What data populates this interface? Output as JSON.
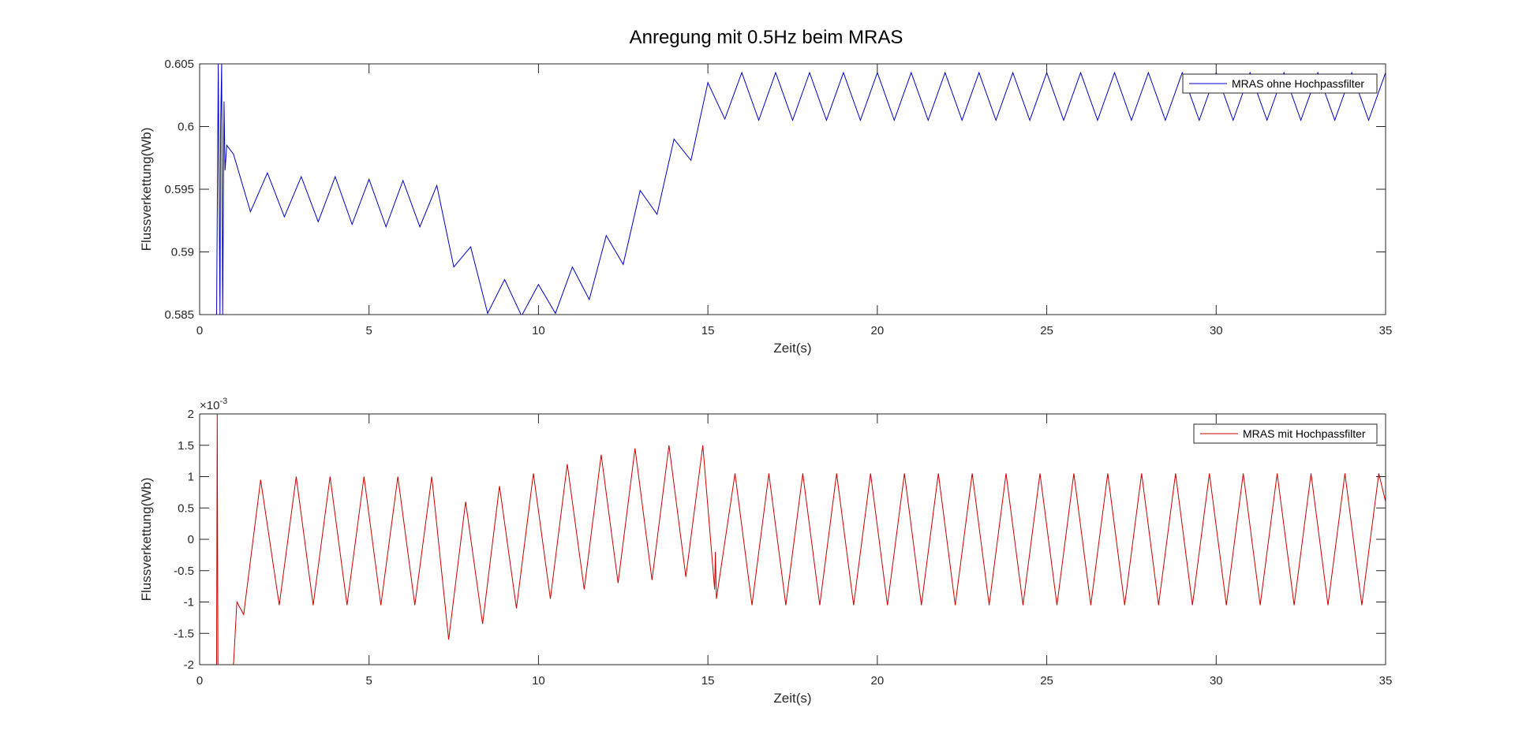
{
  "figure": {
    "title": "Anregung mit 0.5Hz beim MRAS"
  },
  "chart_data": [
    {
      "type": "line",
      "title": "Anregung mit 0.5Hz beim MRAS",
      "xlabel": "Zeit(s)",
      "ylabel": "Flussverkettung(Wb)",
      "xlim": [
        0,
        35
      ],
      "ylim": [
        0.585,
        0.605
      ],
      "xticks": [
        0,
        5,
        10,
        15,
        20,
        25,
        30,
        35
      ],
      "yticks": [
        0.585,
        0.59,
        0.595,
        0.6,
        0.605
      ],
      "ytick_labels": [
        "0.585",
        "0.59",
        "0.595",
        "0.6",
        "0.605"
      ],
      "legend": "top-right",
      "grid": false,
      "exponent_label": "",
      "series": [
        {
          "name": "MRAS ohne Hochpassfilter",
          "color": "#0000c8",
          "points": [
            [
              0.5,
              0.585
            ],
            [
              0.55,
              0.605
            ],
            [
              0.6,
              0.585
            ],
            [
              0.62,
              0.6
            ],
            [
              0.65,
              0.605
            ],
            [
              0.68,
              0.585
            ],
            [
              0.72,
              0.602
            ],
            [
              0.75,
              0.5965
            ],
            [
              0.8,
              0.5985
            ],
            [
              1.0,
              0.5978
            ],
            [
              1.5,
              0.5932
            ],
            [
              2.0,
              0.5963
            ],
            [
              2.5,
              0.5928
            ],
            [
              3.0,
              0.596
            ],
            [
              3.5,
              0.5924
            ],
            [
              4.0,
              0.596
            ],
            [
              4.5,
              0.5922
            ],
            [
              5.0,
              0.5958
            ],
            [
              5.5,
              0.592
            ],
            [
              6.0,
              0.5957
            ],
            [
              6.5,
              0.592
            ],
            [
              7.0,
              0.5953
            ],
            [
              7.5,
              0.5888
            ],
            [
              8.0,
              0.5904
            ],
            [
              8.5,
              0.5851
            ],
            [
              9.0,
              0.5878
            ],
            [
              9.5,
              0.5849
            ],
            [
              10.0,
              0.5874
            ],
            [
              10.5,
              0.5851
            ],
            [
              11.0,
              0.5888
            ],
            [
              11.5,
              0.5862
            ],
            [
              12.0,
              0.5913
            ],
            [
              12.5,
              0.589
            ],
            [
              13.0,
              0.5949
            ],
            [
              13.5,
              0.593
            ],
            [
              14.0,
              0.599
            ],
            [
              14.5,
              0.5973
            ],
            [
              15.0,
              0.6035
            ],
            [
              15.5,
              0.6006
            ],
            [
              16.0,
              0.6043
            ],
            [
              16.5,
              0.6005
            ],
            [
              17.0,
              0.6043
            ],
            [
              17.5,
              0.6005
            ],
            [
              18.0,
              0.6043
            ],
            [
              18.5,
              0.6005
            ],
            [
              19.0,
              0.6043
            ],
            [
              19.5,
              0.6005
            ],
            [
              20.0,
              0.6043
            ],
            [
              20.5,
              0.6005
            ],
            [
              21.0,
              0.6043
            ],
            [
              21.5,
              0.6005
            ],
            [
              22.0,
              0.6043
            ],
            [
              22.5,
              0.6005
            ],
            [
              23.0,
              0.6043
            ],
            [
              23.5,
              0.6005
            ],
            [
              24.0,
              0.6043
            ],
            [
              24.5,
              0.6005
            ],
            [
              25.0,
              0.6043
            ],
            [
              25.5,
              0.6005
            ],
            [
              26.0,
              0.6043
            ],
            [
              26.5,
              0.6005
            ],
            [
              27.0,
              0.6043
            ],
            [
              27.5,
              0.6005
            ],
            [
              28.0,
              0.6043
            ],
            [
              28.5,
              0.6005
            ],
            [
              29.0,
              0.6043
            ],
            [
              29.5,
              0.6005
            ],
            [
              30.0,
              0.6043
            ],
            [
              30.5,
              0.6005
            ],
            [
              31.0,
              0.6043
            ],
            [
              31.5,
              0.6005
            ],
            [
              32.0,
              0.6043
            ],
            [
              32.5,
              0.6005
            ],
            [
              33.0,
              0.6043
            ],
            [
              33.5,
              0.6005
            ],
            [
              34.0,
              0.6043
            ],
            [
              34.5,
              0.6005
            ],
            [
              35.0,
              0.6043
            ]
          ]
        }
      ]
    },
    {
      "type": "line",
      "title": "",
      "xlabel": "Zeit(s)",
      "ylabel": "Flussverkettung(Wb)",
      "xlim": [
        0,
        35
      ],
      "ylim": [
        -0.002,
        0.002
      ],
      "xticks": [
        0,
        5,
        10,
        15,
        20,
        25,
        30,
        35
      ],
      "yticks": [
        -0.002,
        -0.0015,
        -0.001,
        -0.0005,
        0,
        0.0005,
        0.001,
        0.0015,
        0.002
      ],
      "ytick_labels": [
        "-2",
        "-1.5",
        "-1",
        "-0.5",
        "0",
        "0.5",
        "1",
        "1.5",
        "2"
      ],
      "legend": "top-right",
      "grid": false,
      "exponent_label": "×10",
      "exponent_power": "-3",
      "series": [
        {
          "name": "MRAS mit Hochpassfilter",
          "color": "#c80000",
          "points": [
            [
              0.5,
              -0.002
            ],
            [
              0.52,
              0.002
            ],
            [
              0.54,
              -0.002
            ],
            [
              1.0,
              -0.002
            ],
            [
              1.1,
              -0.001
            ],
            [
              1.3,
              -0.0012
            ],
            [
              1.8,
              0.00095
            ],
            [
              2.35,
              -0.00105
            ],
            [
              2.85,
              0.001
            ],
            [
              3.35,
              -0.00105
            ],
            [
              3.85,
              0.001
            ],
            [
              4.35,
              -0.00105
            ],
            [
              4.85,
              0.001
            ],
            [
              5.35,
              -0.00105
            ],
            [
              5.85,
              0.001
            ],
            [
              6.35,
              -0.00105
            ],
            [
              6.85,
              0.001
            ],
            [
              7.35,
              -0.0016
            ],
            [
              7.85,
              0.0006
            ],
            [
              8.35,
              -0.00135
            ],
            [
              8.85,
              0.00085
            ],
            [
              9.35,
              -0.0011
            ],
            [
              9.85,
              0.00105
            ],
            [
              10.35,
              -0.00095
            ],
            [
              10.85,
              0.0012
            ],
            [
              11.35,
              -0.0008
            ],
            [
              11.85,
              0.00135
            ],
            [
              12.35,
              -0.0007
            ],
            [
              12.85,
              0.00145
            ],
            [
              13.35,
              -0.00065
            ],
            [
              13.85,
              0.0015
            ],
            [
              14.35,
              -0.0006
            ],
            [
              14.85,
              0.0015
            ],
            [
              15.2,
              -0.0008
            ],
            [
              15.22,
              -0.0002
            ],
            [
              15.25,
              -0.00095
            ],
            [
              15.8,
              0.00105
            ],
            [
              16.3,
              -0.00105
            ],
            [
              16.8,
              0.00105
            ],
            [
              17.3,
              -0.00105
            ],
            [
              17.8,
              0.00105
            ],
            [
              18.3,
              -0.00105
            ],
            [
              18.8,
              0.00105
            ],
            [
              19.3,
              -0.00105
            ],
            [
              19.8,
              0.00105
            ],
            [
              20.3,
              -0.00105
            ],
            [
              20.8,
              0.00105
            ],
            [
              21.3,
              -0.00105
            ],
            [
              21.8,
              0.00105
            ],
            [
              22.3,
              -0.00105
            ],
            [
              22.8,
              0.00105
            ],
            [
              23.3,
              -0.00105
            ],
            [
              23.8,
              0.00105
            ],
            [
              24.3,
              -0.00105
            ],
            [
              24.8,
              0.00105
            ],
            [
              25.3,
              -0.00105
            ],
            [
              25.8,
              0.00105
            ],
            [
              26.3,
              -0.00105
            ],
            [
              26.8,
              0.00105
            ],
            [
              27.3,
              -0.00105
            ],
            [
              27.8,
              0.00105
            ],
            [
              28.3,
              -0.00105
            ],
            [
              28.8,
              0.00105
            ],
            [
              29.3,
              -0.00105
            ],
            [
              29.8,
              0.00105
            ],
            [
              30.3,
              -0.00105
            ],
            [
              30.8,
              0.00105
            ],
            [
              31.3,
              -0.00105
            ],
            [
              31.8,
              0.00105
            ],
            [
              32.3,
              -0.00105
            ],
            [
              32.8,
              0.00105
            ],
            [
              33.3,
              -0.00105
            ],
            [
              33.8,
              0.00105
            ],
            [
              34.3,
              -0.00105
            ],
            [
              34.8,
              0.00105
            ],
            [
              35.0,
              0.0006
            ]
          ]
        }
      ]
    }
  ]
}
